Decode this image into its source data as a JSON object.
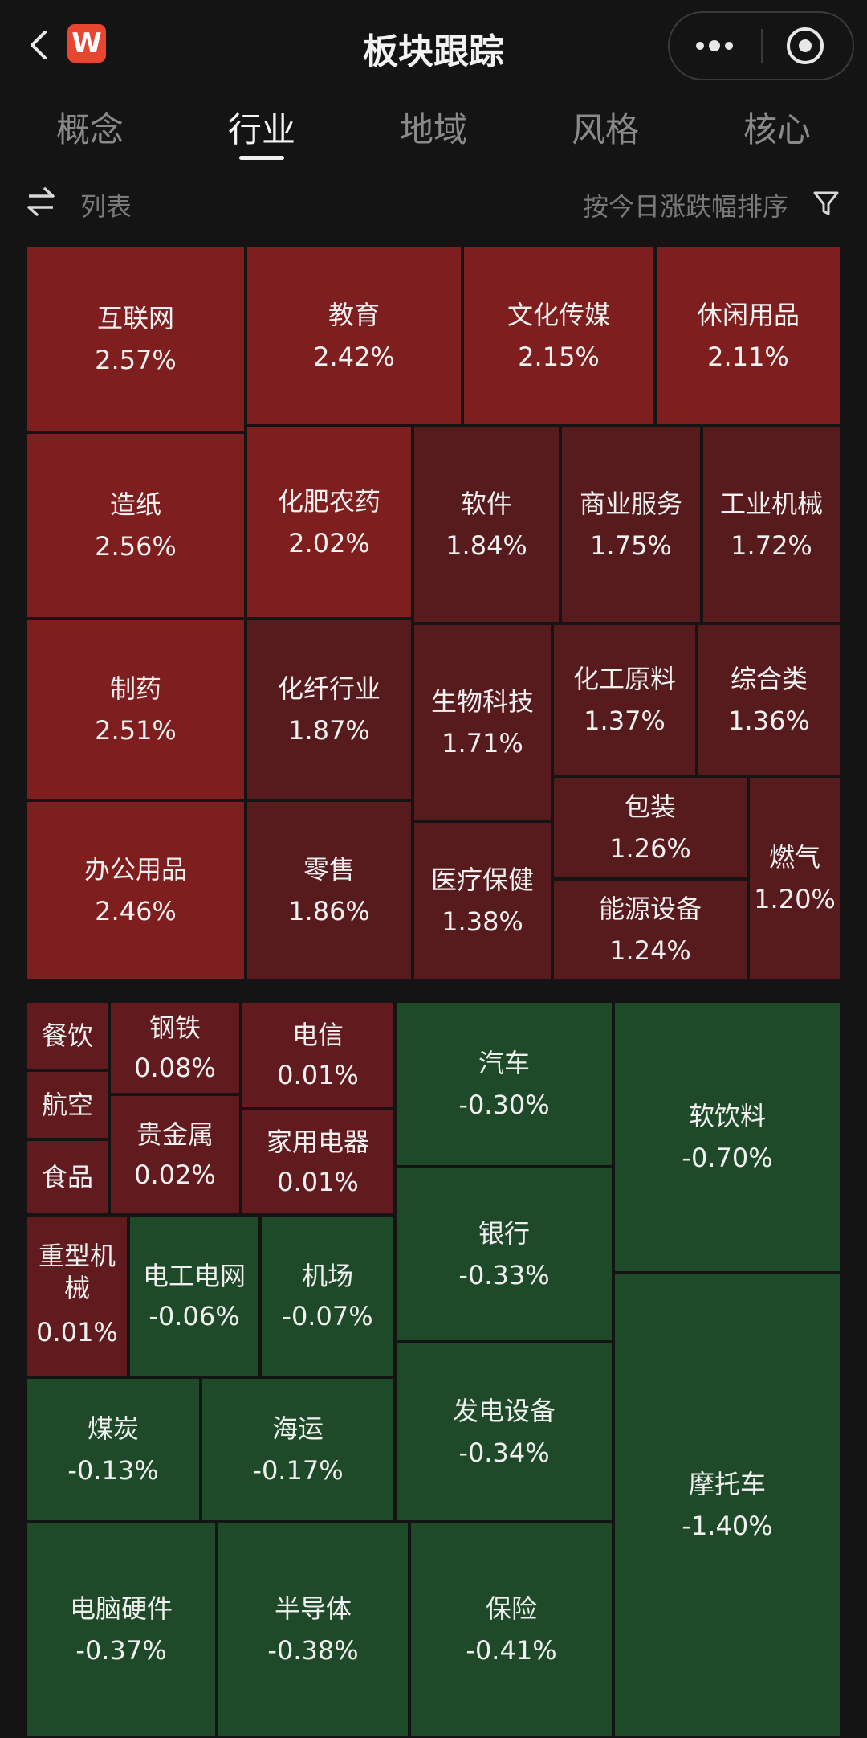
{
  "header": {
    "title": "板块跟踪",
    "logo_text": "W",
    "logo_color": "#e8462e"
  },
  "tabs": [
    {
      "label": "概念",
      "active": false
    },
    {
      "label": "行业",
      "active": true
    },
    {
      "label": "地域",
      "active": false
    },
    {
      "label": "风格",
      "active": false
    },
    {
      "label": "核心",
      "active": false
    }
  ],
  "toolbar": {
    "view_label": "列表",
    "sort_label": "按今日涨跌幅排序"
  },
  "colors": {
    "up": "#7e1e1e",
    "up_dark": "#571a1d",
    "down": "#1f4a29",
    "background": "#141414"
  },
  "treemap": {
    "gainers": [
      {
        "name": "互联网",
        "pct": "2.57%"
      },
      {
        "name": "教育",
        "pct": "2.42%"
      },
      {
        "name": "文化传媒",
        "pct": "2.15%"
      },
      {
        "name": "休闲用品",
        "pct": "2.11%"
      },
      {
        "name": "造纸",
        "pct": "2.56%"
      },
      {
        "name": "化肥农药",
        "pct": "2.02%"
      },
      {
        "name": "软件",
        "pct": "1.84%"
      },
      {
        "name": "商业服务",
        "pct": "1.75%"
      },
      {
        "name": "工业机械",
        "pct": "1.72%"
      },
      {
        "name": "制药",
        "pct": "2.51%"
      },
      {
        "name": "化纤行业",
        "pct": "1.87%"
      },
      {
        "name": "生物科技",
        "pct": "1.71%"
      },
      {
        "name": "化工原料",
        "pct": "1.37%"
      },
      {
        "name": "综合类",
        "pct": "1.36%"
      },
      {
        "name": "办公用品",
        "pct": "2.46%"
      },
      {
        "name": "零售",
        "pct": "1.86%"
      },
      {
        "name": "医疗保健",
        "pct": "1.38%"
      },
      {
        "name": "包装",
        "pct": "1.26%"
      },
      {
        "name": "燃气",
        "pct": "1.20%"
      },
      {
        "name": "能源设备",
        "pct": "1.24%"
      }
    ],
    "mixed": [
      {
        "name": "餐饮",
        "pct": ""
      },
      {
        "name": "航空",
        "pct": ""
      },
      {
        "name": "食品",
        "pct": ""
      },
      {
        "name": "钢铁",
        "pct": "0.08%"
      },
      {
        "name": "贵金属",
        "pct": "0.02%"
      },
      {
        "name": "电信",
        "pct": "0.01%"
      },
      {
        "name": "家用电器",
        "pct": "0.01%"
      },
      {
        "name": "重型机械",
        "pct": "0.01%"
      },
      {
        "name": "电工电网",
        "pct": "-0.06%"
      },
      {
        "name": "机场",
        "pct": "-0.07%"
      },
      {
        "name": "汽车",
        "pct": "-0.30%"
      },
      {
        "name": "银行",
        "pct": "-0.33%"
      },
      {
        "name": "发电设备",
        "pct": "-0.34%"
      },
      {
        "name": "软饮料",
        "pct": "-0.70%"
      },
      {
        "name": "摩托车",
        "pct": "-1.40%"
      },
      {
        "name": "煤炭",
        "pct": "-0.13%"
      },
      {
        "name": "海运",
        "pct": "-0.17%"
      },
      {
        "name": "电脑硬件",
        "pct": "-0.37%"
      },
      {
        "name": "半导体",
        "pct": "-0.38%"
      },
      {
        "name": "保险",
        "pct": "-0.41%"
      }
    ]
  }
}
